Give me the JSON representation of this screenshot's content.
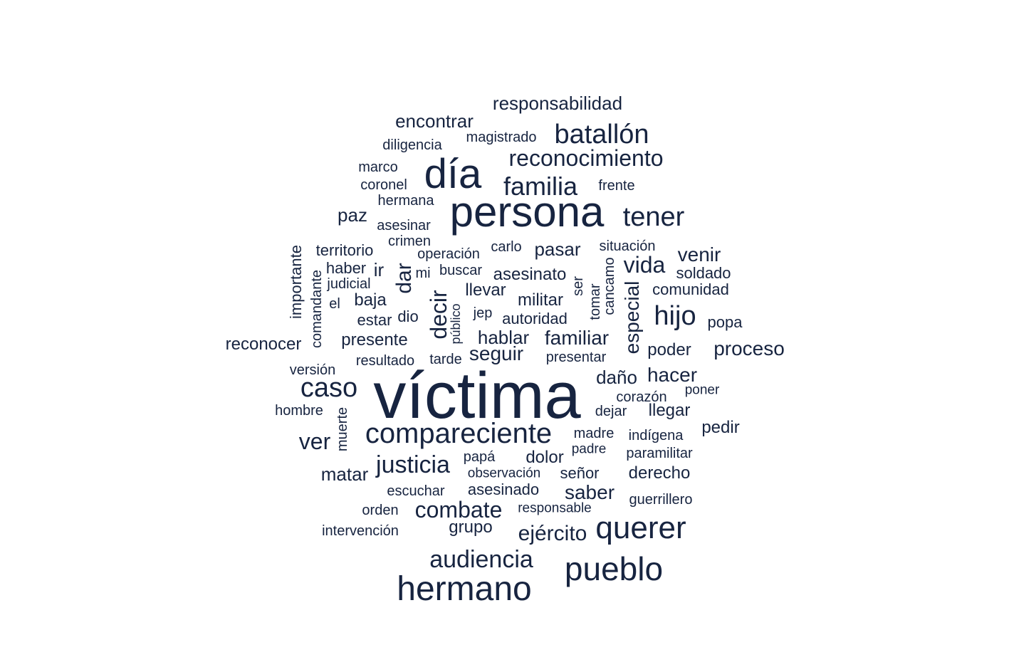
{
  "colors": {
    "word": "#172440",
    "background": "#ffffff"
  },
  "words": [
    "víctima",
    "persona",
    "día",
    "hermano",
    "compareciente",
    "pueblo",
    "querer",
    "tener",
    "caso",
    "batallón",
    "reconocimiento",
    "familia",
    "justicia",
    "audiencia",
    "hijo",
    "combate",
    "decir",
    "especial",
    "vida",
    "ejército",
    "ver",
    "responsabilidad",
    "encontrar",
    "dar",
    "proceso",
    "familiar",
    "hablar",
    "seguir",
    "hacer",
    "pasar",
    "venir",
    "saber",
    "reconocer",
    "presente",
    "matar",
    "daño",
    "militar",
    "asesinato",
    "pedir",
    "derecho",
    "paz",
    "grupo",
    "asesinado",
    "comunidad",
    "poder",
    "llevar",
    "baja",
    "territorio",
    "llegar",
    "dolor",
    "popa",
    "soldado",
    "señor",
    "importante",
    "paramilitar",
    "escuchar",
    "intervención",
    "hombre",
    "madre",
    "papá",
    "observación",
    "guerrillero",
    "magistrado",
    "diligencia",
    "marco",
    "coronel",
    "hermana",
    "asesinar",
    "frente",
    "crimen",
    "operación",
    "carlo",
    "situación",
    "autoridad",
    "buscar",
    "haber",
    "ir",
    "mi",
    "judicial",
    "comandante",
    "el",
    "estar",
    "dio",
    "jep",
    "público",
    "tarde",
    "resultado",
    "presentar",
    "versión",
    "corazón",
    "poner",
    "dejar",
    "muerte",
    "indígena",
    "padre",
    "responsable",
    "orden",
    "cancamo",
    "tomar",
    "ser"
  ]
}
